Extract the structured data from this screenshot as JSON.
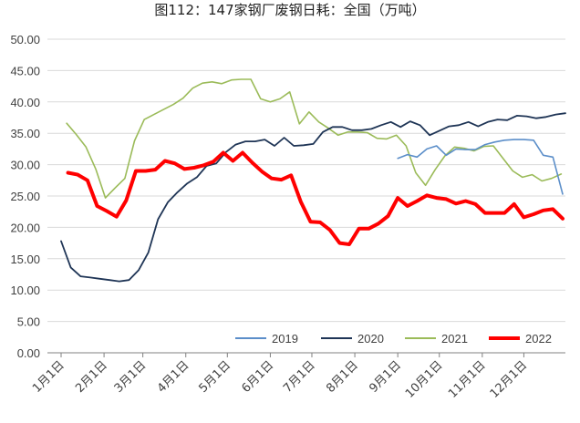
{
  "chart_data": {
    "type": "line",
    "title": "图112：147家钢厂废钢日耗：全国（万吨）",
    "xlabel": "",
    "ylabel": "",
    "ylim": [
      0,
      50
    ],
    "yticks": [
      "0.00",
      "5.00",
      "10.00",
      "15.00",
      "20.00",
      "25.00",
      "30.00",
      "35.00",
      "40.00",
      "45.00",
      "50.00"
    ],
    "xticks": [
      "1月1日",
      "2月1日",
      "3月1日",
      "4月1日",
      "5月1日",
      "6月1日",
      "7月1日",
      "8月1日",
      "9月1日",
      "10月1日",
      "11月1日",
      "12月1日"
    ],
    "grid": "horizontal",
    "legend_position": "bottom-center",
    "series": [
      {
        "name": "2019",
        "color": "#5b8ec9",
        "x": [
          "09-01",
          "09-08",
          "09-15",
          "09-22",
          "09-29",
          "10-06",
          "10-13",
          "10-20",
          "10-27",
          "11-03",
          "11-10",
          "11-17",
          "11-24",
          "12-01",
          "12-08",
          "12-15",
          "12-22",
          "12-29"
        ],
        "values": [
          31.0,
          31.6,
          31.2,
          32.5,
          33.0,
          31.5,
          32.5,
          32.4,
          32.4,
          33.2,
          33.6,
          33.9,
          34.0,
          34.0,
          33.9,
          31.5,
          31.2,
          25.3
        ]
      },
      {
        "name": "2020",
        "color": "#1f3556",
        "x": [
          "01-01",
          "01-08",
          "01-15",
          "01-22",
          "01-29",
          "02-05",
          "02-12",
          "02-19",
          "02-26",
          "03-05",
          "03-12",
          "03-19",
          "03-26",
          "04-02",
          "04-09",
          "04-16",
          "04-23",
          "04-30",
          "05-07",
          "05-14",
          "05-21",
          "05-28",
          "06-04",
          "06-11",
          "06-18",
          "06-25",
          "07-02",
          "07-09",
          "07-16",
          "07-23",
          "07-30",
          "08-06",
          "08-13",
          "08-20",
          "08-27",
          "09-03",
          "09-10",
          "09-17",
          "09-24",
          "10-01",
          "10-08",
          "10-15",
          "10-22",
          "10-29",
          "11-05",
          "11-12",
          "11-19",
          "11-26",
          "12-03",
          "12-10",
          "12-17",
          "12-24",
          "12-31"
        ],
        "values": [
          17.8,
          13.6,
          12.2,
          12.0,
          11.8,
          11.6,
          11.4,
          11.6,
          13.2,
          16.0,
          21.3,
          24.0,
          25.6,
          27.0,
          28.0,
          29.8,
          30.2,
          32.0,
          33.2,
          33.7,
          33.7,
          34.0,
          33.0,
          34.3,
          33.0,
          33.1,
          33.3,
          35.2,
          36.0,
          36.0,
          35.5,
          35.5,
          35.7,
          36.3,
          36.8,
          36.0,
          36.9,
          36.3,
          34.7,
          35.4,
          36.1,
          36.3,
          36.8,
          36.1,
          36.8,
          37.2,
          37.1,
          37.8,
          37.7,
          37.4,
          37.6,
          38.0,
          38.2
        ]
      },
      {
        "name": "2021",
        "color": "#9bbb59",
        "x": [
          "01-05",
          "01-12",
          "01-19",
          "01-26",
          "02-02",
          "02-09",
          "02-16",
          "02-23",
          "03-02",
          "03-09",
          "03-16",
          "03-23",
          "03-30",
          "04-06",
          "04-13",
          "04-20",
          "04-27",
          "05-04",
          "05-11",
          "05-18",
          "05-25",
          "06-01",
          "06-08",
          "06-15",
          "06-22",
          "06-29",
          "07-06",
          "07-13",
          "07-20",
          "07-27",
          "08-03",
          "08-10",
          "08-17",
          "08-24",
          "08-31",
          "09-07",
          "09-14",
          "09-21",
          "09-28",
          "10-05",
          "10-12",
          "10-19",
          "10-26",
          "11-02",
          "11-09",
          "11-16",
          "11-23",
          "11-30",
          "12-07",
          "12-14",
          "12-21",
          "12-28"
        ],
        "values": [
          36.6,
          34.8,
          32.8,
          29.3,
          24.7,
          26.3,
          27.8,
          33.8,
          37.2,
          38.0,
          38.8,
          39.6,
          40.6,
          42.2,
          43.0,
          43.2,
          42.9,
          43.5,
          43.6,
          43.6,
          40.5,
          40.0,
          40.5,
          41.6,
          36.5,
          38.4,
          36.8,
          35.8,
          34.7,
          35.2,
          35.2,
          35.1,
          34.2,
          34.1,
          34.7,
          33.0,
          28.7,
          26.7,
          29.2,
          31.4,
          32.8,
          32.6,
          32.2,
          32.9,
          33.0,
          31.0,
          29.0,
          28.0,
          28.4,
          27.4,
          27.8,
          28.5
        ]
      },
      {
        "name": "2022",
        "color": "#ff0000",
        "x": [
          "01-06",
          "01-13",
          "01-20",
          "01-27",
          "02-03",
          "02-10",
          "02-17",
          "02-24",
          "03-03",
          "03-10",
          "03-17",
          "03-24",
          "03-31",
          "04-07",
          "04-14",
          "04-21",
          "04-28",
          "05-05",
          "05-12",
          "05-19",
          "05-26",
          "06-02",
          "06-09",
          "06-16",
          "06-23",
          "06-30",
          "07-07",
          "07-14",
          "07-21",
          "07-28",
          "08-04",
          "08-11",
          "08-18",
          "08-25",
          "09-01",
          "09-08",
          "09-15",
          "09-22",
          "09-29",
          "10-06",
          "10-13",
          "10-20",
          "10-27",
          "11-03",
          "11-10",
          "11-17",
          "11-24",
          "12-01",
          "12-08",
          "12-15",
          "12-22",
          "12-29"
        ],
        "values": [
          28.7,
          28.4,
          27.5,
          23.4,
          22.6,
          21.7,
          24.3,
          29.0,
          29.0,
          29.2,
          30.6,
          30.2,
          29.3,
          29.5,
          29.9,
          30.5,
          31.9,
          30.6,
          31.9,
          30.3,
          28.9,
          27.8,
          27.6,
          28.3,
          24.1,
          20.9,
          20.8,
          19.6,
          17.5,
          17.3,
          19.8,
          19.8,
          20.6,
          21.8,
          24.7,
          23.4,
          24.2,
          25.1,
          24.7,
          24.5,
          23.8,
          24.2,
          23.7,
          22.3,
          22.3,
          22.3,
          23.7,
          21.6,
          22.1,
          22.7,
          22.9,
          21.4
        ]
      }
    ]
  }
}
